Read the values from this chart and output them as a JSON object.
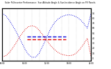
{
  "title": "Solar PV/Inverter Performance  Sun Altitude Angle & Sun Incidence Angle on PV Panels",
  "blue_color": "#0000dd",
  "red_color": "#dd0000",
  "bg_color": "#ffffff",
  "grid_color": "#aaaaaa",
  "ylim": [
    -5,
    100
  ],
  "yticks_right": [
    0,
    10,
    20,
    30,
    40,
    50,
    60,
    70,
    80,
    90
  ],
  "xlim": [
    0,
    24
  ],
  "xticks": [
    0,
    2,
    4,
    6,
    8,
    10,
    12,
    14,
    16,
    18,
    20,
    22,
    24
  ],
  "sun_altitude_x": [
    0,
    1,
    2,
    3,
    4,
    5,
    6,
    7,
    8,
    9,
    10,
    11,
    12,
    13,
    14,
    15,
    16,
    17,
    18,
    19,
    20,
    21,
    22,
    23,
    24
  ],
  "sun_altitude_y": [
    90,
    85,
    75,
    63,
    50,
    35,
    20,
    8,
    2,
    2,
    10,
    25,
    42,
    58,
    70,
    78,
    83,
    86,
    87,
    86,
    83,
    78,
    70,
    60,
    90
  ],
  "sun_incidence_x": [
    0,
    1,
    2,
    3,
    4,
    5,
    6,
    7,
    8,
    9,
    10,
    11,
    12,
    13,
    14,
    15,
    16,
    17,
    18,
    19,
    20,
    21,
    22,
    23,
    24
  ],
  "sun_incidence_y": [
    3,
    5,
    12,
    22,
    34,
    46,
    56,
    63,
    65,
    63,
    56,
    46,
    36,
    26,
    18,
    12,
    8,
    6,
    5,
    6,
    10,
    18,
    28,
    40,
    3
  ],
  "dash_blue_y": 44,
  "dash_red_y": 38,
  "dash_xmin": 0.28,
  "dash_xmax": 0.72
}
